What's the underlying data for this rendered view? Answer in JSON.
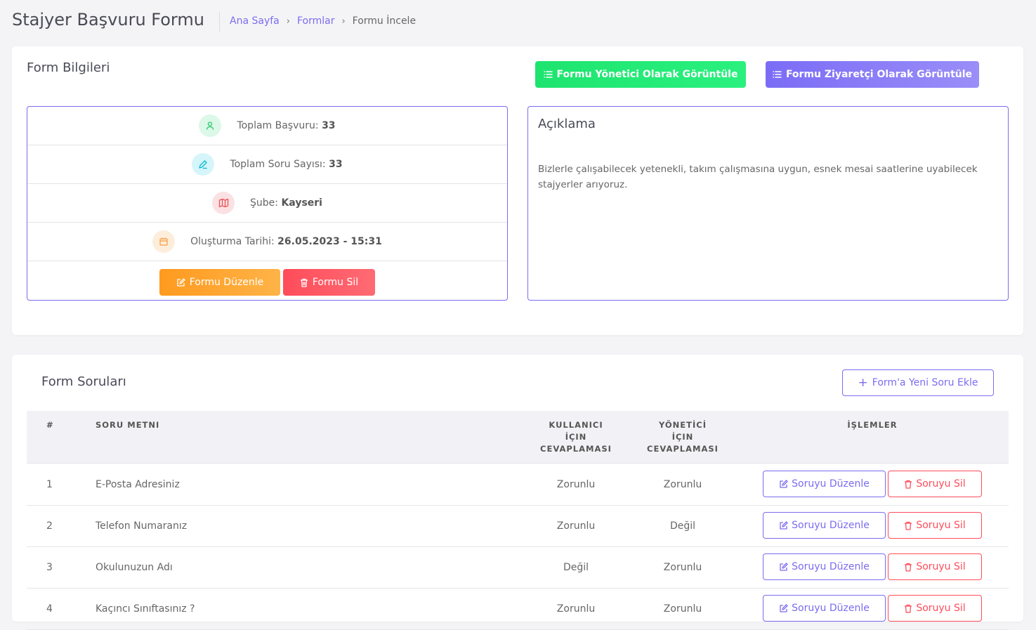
{
  "header": {
    "title": "Stajyer Başvuru Formu",
    "breadcrumb": [
      {
        "label": "Ana Sayfa"
      },
      {
        "label": "Formlar"
      },
      {
        "label": "Formu İncele"
      }
    ]
  },
  "form_info": {
    "title": "Form Bilgileri",
    "admin_view_button": "Formu Yönetici Olarak Görüntüle",
    "visitor_view_button": "Formu Ziyaretçi Olarak Görüntüle",
    "stats": [
      {
        "label": "Toplam Başvuru:",
        "value": "33",
        "icon": "user-icon"
      },
      {
        "label": "Toplam Soru Sayısı:",
        "value": "33",
        "icon": "edit-pen-icon"
      },
      {
        "label": "Şube:",
        "value": "Kayseri",
        "icon": "map-icon"
      },
      {
        "label": "Oluşturma Tarihi:",
        "value": "26.05.2023 - 15:31",
        "icon": "calendar-icon"
      }
    ],
    "edit_button": "Formu Düzenle",
    "delete_button": "Formu Sil",
    "description": {
      "title": "Açıklama",
      "text": "Bizlerle çalışabilecek yetenekli, takım çalışmasına uygun, esnek mesai saatlerine uyabilecek stajyerler arıyoruz."
    },
    "colors": {
      "accent": "#7b6cf0",
      "green": "#22e873",
      "orange": "#ffa031",
      "red": "#ff4c5a"
    }
  },
  "questions": {
    "title": "Form Soruları",
    "add_button": "Form'a Yeni Soru Ekle",
    "columns": {
      "num": "#",
      "text": "SORU METNI",
      "user_answer": [
        "KULLANICI",
        "İÇIN",
        "CEVAPLAMASI"
      ],
      "admin_answer": [
        "YÖNETİCİ",
        "İÇIN",
        "CEVAPLAMASI"
      ],
      "actions": "İŞLEMLER"
    },
    "edit_label": "Soruyu Düzenle",
    "delete_label": "Soruyu Sil",
    "rows": [
      {
        "num": "1",
        "text": "E-Posta Adresiniz",
        "user": "Zorunlu",
        "admin": "Zorunlu"
      },
      {
        "num": "2",
        "text": "Telefon Numaranız",
        "user": "Zorunlu",
        "admin": "Değil"
      },
      {
        "num": "3",
        "text": "Okulunuzun Adı",
        "user": "Değil",
        "admin": "Zorunlu"
      },
      {
        "num": "4",
        "text": "Kaçıncı Sınıftasınız ?",
        "user": "Zorunlu",
        "admin": "Zorunlu"
      }
    ]
  }
}
